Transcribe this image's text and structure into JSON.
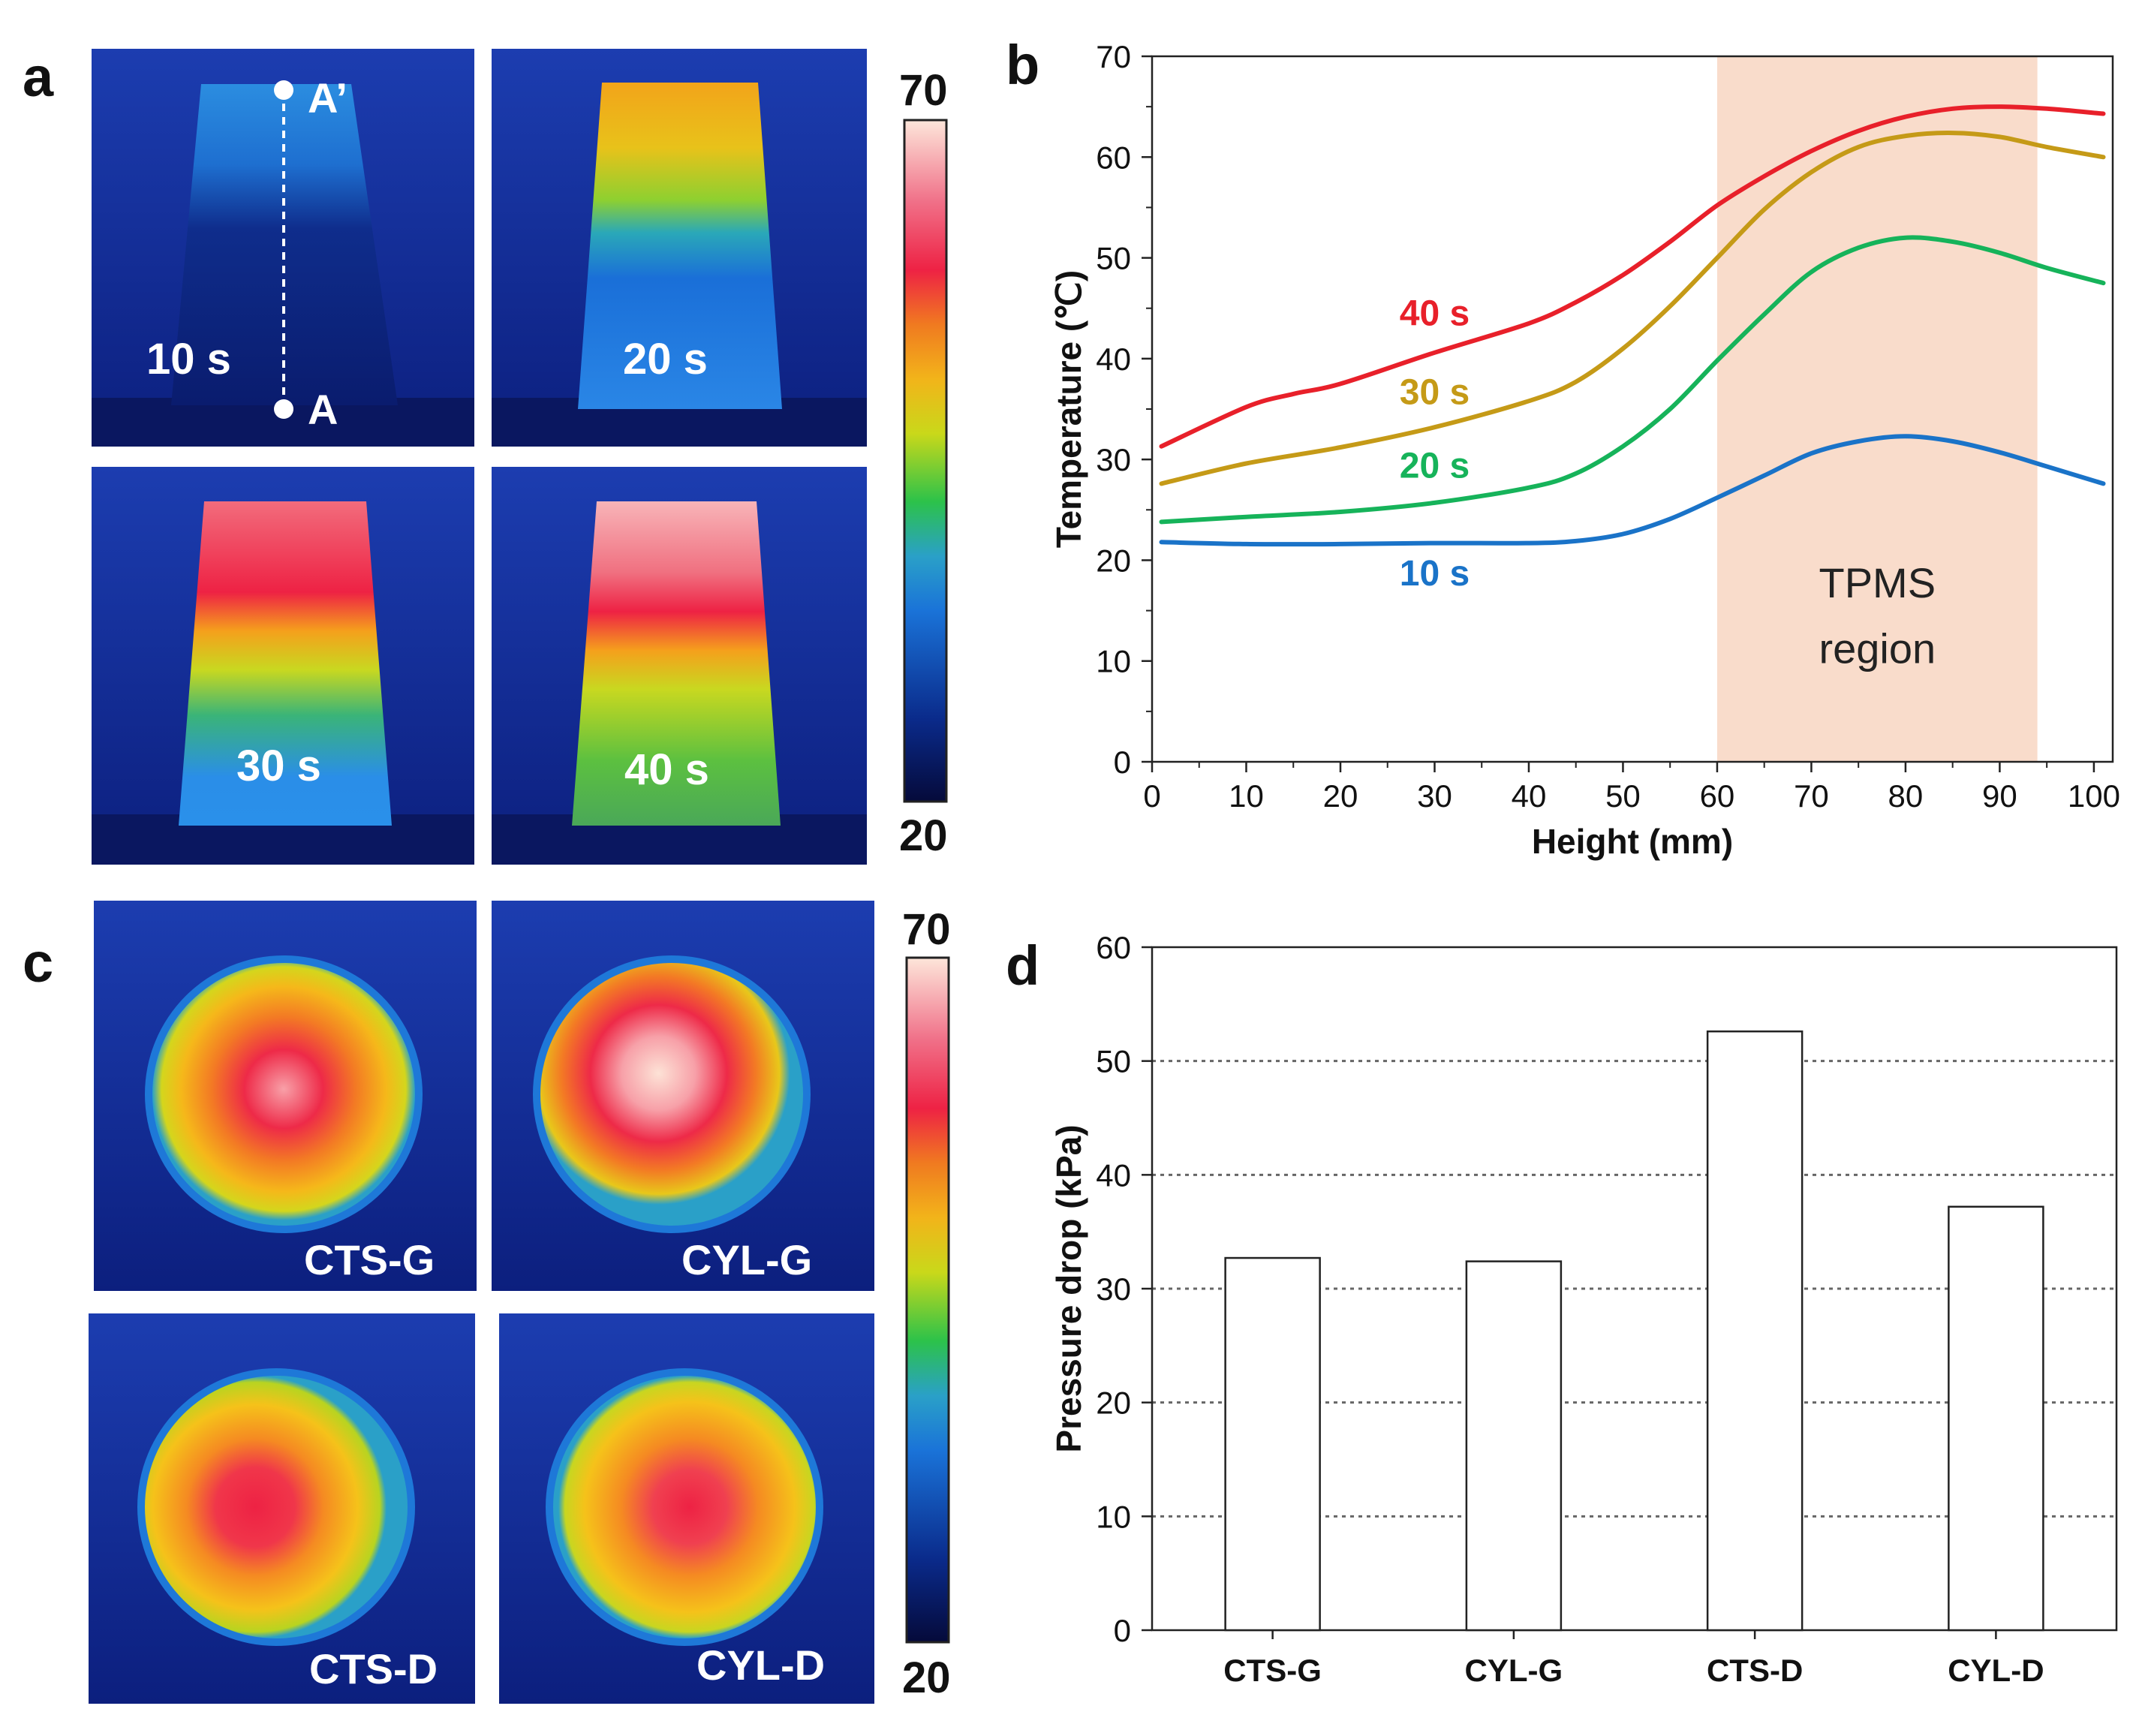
{
  "panels": {
    "a": "a",
    "b": "b",
    "c": "c",
    "d": "d"
  },
  "thermal_a": {
    "images": [
      {
        "time_label": "10 s"
      },
      {
        "time_label": "20 s"
      },
      {
        "time_label": "30 s"
      },
      {
        "time_label": "40 s"
      }
    ],
    "point_top": "A’",
    "point_bottom": "A",
    "colorbar": {
      "max": "70",
      "min": "20"
    }
  },
  "thermal_c": {
    "images": [
      {
        "label": "CTS-G"
      },
      {
        "label": "CYL-G"
      },
      {
        "label": "CTS-D"
      },
      {
        "label": "CYL-D"
      }
    ],
    "colorbar": {
      "max": "70",
      "min": "20"
    }
  },
  "colors": {
    "s10": "#1a73c8",
    "s20": "#16b35a",
    "s30": "#c59a17",
    "s40": "#e8202a",
    "tpms": "#f9dccb"
  },
  "chart_data": [
    {
      "type": "line",
      "panel": "b",
      "title": "",
      "xlabel": "Height (mm)",
      "ylabel": "Temperature (℃)",
      "xlim": [
        0,
        102
      ],
      "ylim": [
        0,
        70
      ],
      "xticks": [
        0,
        10,
        20,
        30,
        40,
        50,
        60,
        70,
        80,
        90,
        100
      ],
      "yticks": [
        0,
        10,
        20,
        30,
        40,
        50,
        60,
        70
      ],
      "shaded_region": {
        "x_start": 60,
        "x_end": 94,
        "label_line1": "TPMS",
        "label_line2": "region"
      },
      "series": [
        {
          "name": "10 s",
          "color_key": "s10",
          "x": [
            1,
            10,
            20,
            30,
            40,
            45,
            50,
            55,
            60,
            65,
            70,
            75,
            80,
            85,
            90,
            95,
            101
          ],
          "y": [
            21.8,
            21.6,
            21.6,
            21.7,
            21.7,
            21.9,
            22.6,
            24.1,
            26.2,
            28.4,
            30.6,
            31.8,
            32.3,
            31.8,
            30.7,
            29.3,
            27.6
          ]
        },
        {
          "name": "20 s",
          "color_key": "s20",
          "x": [
            1,
            10,
            20,
            30,
            40,
            45,
            50,
            55,
            60,
            65,
            70,
            75,
            80,
            85,
            90,
            95,
            101
          ],
          "y": [
            23.8,
            24.3,
            24.8,
            25.7,
            27.2,
            28.6,
            31.3,
            35.0,
            39.8,
            44.4,
            48.6,
            51.0,
            52.0,
            51.6,
            50.5,
            49.0,
            47.5
          ]
        },
        {
          "name": "30 s",
          "color_key": "s30",
          "x": [
            1,
            10,
            20,
            30,
            40,
            45,
            50,
            55,
            60,
            65,
            70,
            75,
            80,
            85,
            90,
            95,
            101
          ],
          "y": [
            27.6,
            29.6,
            31.2,
            33.2,
            35.8,
            37.7,
            41.0,
            45.2,
            50.0,
            54.8,
            58.5,
            61.0,
            62.1,
            62.4,
            62.0,
            61.0,
            60.0
          ]
        },
        {
          "name": "40 s",
          "color_key": "s40",
          "x": [
            1,
            10,
            15,
            20,
            30,
            40,
            45,
            50,
            55,
            60,
            65,
            70,
            75,
            80,
            85,
            90,
            95,
            101
          ],
          "y": [
            31.3,
            35.2,
            36.5,
            37.5,
            40.6,
            43.5,
            45.6,
            48.3,
            51.6,
            55.2,
            58.1,
            60.6,
            62.6,
            64.0,
            64.8,
            65.0,
            64.8,
            64.3
          ]
        }
      ],
      "label_positions": {
        "40 s": [
          30,
          43.3
        ],
        "30 s": [
          30,
          35.5
        ],
        "20 s": [
          30,
          28.2
        ],
        "10 s": [
          30,
          17.5
        ]
      }
    },
    {
      "type": "bar",
      "panel": "d",
      "title": "",
      "xlabel": "",
      "ylabel": "Pressure drop (kPa)",
      "ylim": [
        0,
        60
      ],
      "yticks": [
        0,
        10,
        20,
        30,
        40,
        50,
        60
      ],
      "grid": "horizontal-dotted",
      "categories": [
        "CTS-G",
        "CYL-G",
        "CTS-D",
        "CYL-D"
      ],
      "values": [
        32.7,
        32.4,
        52.6,
        37.2
      ]
    }
  ]
}
